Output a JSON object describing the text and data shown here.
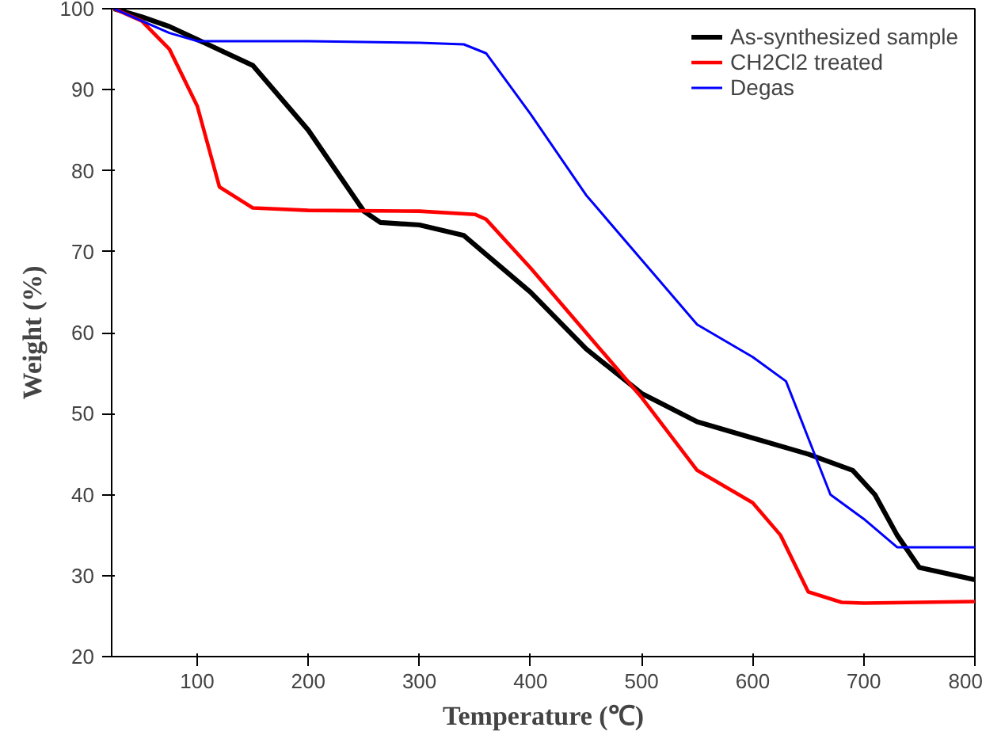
{
  "chart_data": {
    "type": "line",
    "xlabel": "Temperature (℃)",
    "ylabel": "Weight (%)",
    "xlim": [
      23,
      800
    ],
    "ylim": [
      20,
      100
    ],
    "xticks": [
      100,
      200,
      300,
      400,
      500,
      600,
      700,
      800
    ],
    "yticks": [
      20,
      30,
      40,
      50,
      60,
      70,
      80,
      90,
      100
    ],
    "grid": false,
    "legend": "top right",
    "marker": "none",
    "line_style": "solid",
    "series": [
      {
        "name": "As-synthesized sample",
        "color": "#000000",
        "x": [
          25,
          50,
          75,
          100,
          150,
          200,
          250,
          265,
          300,
          340,
          400,
          450,
          500,
          550,
          600,
          650,
          690,
          710,
          730,
          750,
          800
        ],
        "values": [
          100,
          99,
          97.8,
          96.2,
          93,
          85,
          75,
          73.6,
          73.3,
          72,
          65,
          58,
          52.5,
          49,
          47,
          45,
          43,
          40,
          35,
          31,
          29.5
        ]
      },
      {
        "name": "CH2Cl2 treated",
        "color": "#ff0000",
        "x": [
          25,
          50,
          75,
          100,
          120,
          150,
          200,
          300,
          350,
          360,
          400,
          450,
          500,
          550,
          600,
          625,
          650,
          680,
          700,
          800
        ],
        "values": [
          100,
          98.5,
          95,
          88,
          78,
          75.4,
          75.1,
          75,
          74.6,
          74,
          68,
          60,
          52,
          43,
          39,
          35,
          28,
          26.7,
          26.6,
          26.8
        ]
      },
      {
        "name": "Degas",
        "color": "#0000ff",
        "x": [
          25,
          50,
          75,
          100,
          200,
          300,
          340,
          360,
          400,
          450,
          500,
          550,
          600,
          630,
          650,
          670,
          700,
          730,
          800
        ],
        "values": [
          100,
          98.5,
          97,
          96,
          96,
          95.8,
          95.6,
          94.5,
          87,
          77,
          69,
          61,
          57,
          54,
          47,
          40,
          37,
          33.5,
          33.5
        ]
      }
    ]
  }
}
